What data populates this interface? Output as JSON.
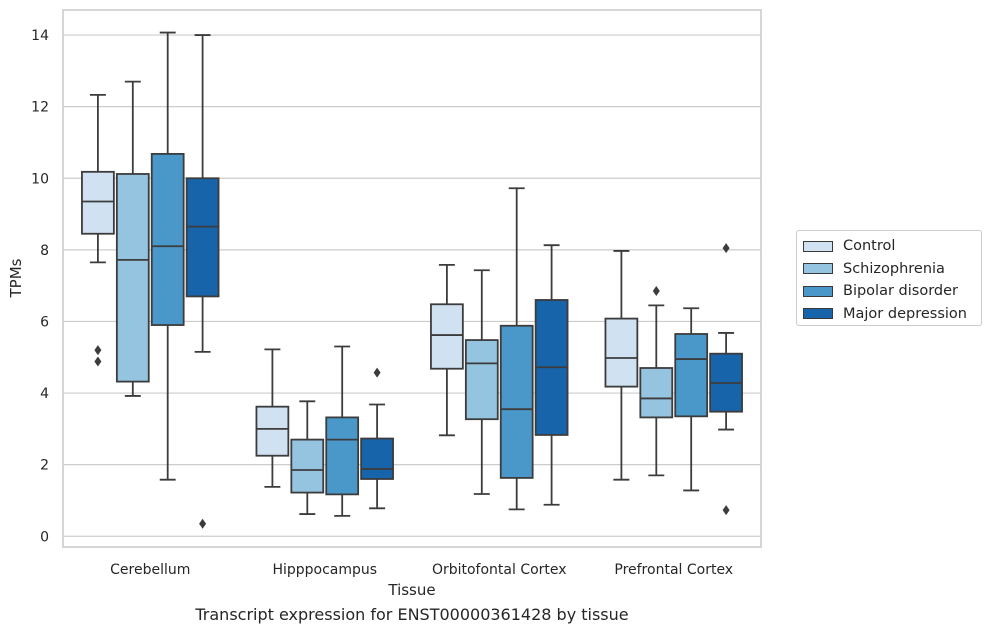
{
  "chart_data": {
    "type": "box",
    "title": "",
    "caption": "Transcript expression for ENST00000361428 by tissue",
    "xlabel": "Tissue",
    "ylabel": "TPMs",
    "ylim": [
      -0.3,
      14.7
    ],
    "yticks": [
      0,
      2,
      4,
      6,
      8,
      10,
      12,
      14
    ],
    "grid": true,
    "legend_position": "right",
    "categories": [
      "Cerebellum",
      "Hipppocampus",
      "Orbitofontal Cortex",
      "Prefrontal Cortex"
    ],
    "series": [
      {
        "name": "Control",
        "color": "#d0e1f2",
        "boxes": [
          {
            "whisker_low": 7.65,
            "q1": 8.45,
            "median": 9.35,
            "q3": 10.18,
            "whisker_high": 12.33,
            "outliers": [
              5.2,
              4.88
            ]
          },
          {
            "whisker_low": 1.38,
            "q1": 2.25,
            "median": 3.0,
            "q3": 3.62,
            "whisker_high": 5.22,
            "outliers": []
          },
          {
            "whisker_low": 2.82,
            "q1": 4.68,
            "median": 5.62,
            "q3": 6.48,
            "whisker_high": 7.58,
            "outliers": []
          },
          {
            "whisker_low": 1.58,
            "q1": 4.18,
            "median": 4.98,
            "q3": 6.08,
            "whisker_high": 7.97,
            "outliers": []
          }
        ]
      },
      {
        "name": "Schizophrenia",
        "color": "#94c4df",
        "boxes": [
          {
            "whisker_low": 3.92,
            "q1": 4.32,
            "median": 7.72,
            "q3": 10.12,
            "whisker_high": 12.7,
            "outliers": []
          },
          {
            "whisker_low": 0.62,
            "q1": 1.22,
            "median": 1.85,
            "q3": 2.7,
            "whisker_high": 3.77,
            "outliers": []
          },
          {
            "whisker_low": 1.18,
            "q1": 3.27,
            "median": 4.83,
            "q3": 5.48,
            "whisker_high": 7.43,
            "outliers": []
          },
          {
            "whisker_low": 1.7,
            "q1": 3.32,
            "median": 3.85,
            "q3": 4.7,
            "whisker_high": 6.45,
            "outliers": [
              6.85
            ]
          }
        ]
      },
      {
        "name": "Bipolar disorder",
        "color": "#4a98c9",
        "boxes": [
          {
            "whisker_low": 1.58,
            "q1": 5.9,
            "median": 8.1,
            "q3": 10.68,
            "whisker_high": 14.07,
            "outliers": []
          },
          {
            "whisker_low": 0.57,
            "q1": 1.17,
            "median": 2.7,
            "q3": 3.32,
            "whisker_high": 5.3,
            "outliers": []
          },
          {
            "whisker_low": 0.75,
            "q1": 1.63,
            "median": 3.55,
            "q3": 5.88,
            "whisker_high": 9.72,
            "outliers": []
          },
          {
            "whisker_low": 1.28,
            "q1": 3.35,
            "median": 4.95,
            "q3": 5.65,
            "whisker_high": 6.37,
            "outliers": []
          }
        ]
      },
      {
        "name": "Major depression",
        "color": "#1764ab",
        "boxes": [
          {
            "whisker_low": 5.15,
            "q1": 6.7,
            "median": 8.65,
            "q3": 10.0,
            "whisker_high": 14.0,
            "outliers": [
              0.35
            ]
          },
          {
            "whisker_low": 0.78,
            "q1": 1.6,
            "median": 1.88,
            "q3": 2.73,
            "whisker_high": 3.68,
            "outliers": [
              4.57
            ]
          },
          {
            "whisker_low": 0.88,
            "q1": 2.83,
            "median": 4.72,
            "q3": 6.6,
            "whisker_high": 8.13,
            "outliers": []
          },
          {
            "whisker_low": 2.98,
            "q1": 3.48,
            "median": 4.28,
            "q3": 5.1,
            "whisker_high": 5.68,
            "outliers": [
              8.05,
              0.73
            ]
          }
        ]
      }
    ]
  }
}
